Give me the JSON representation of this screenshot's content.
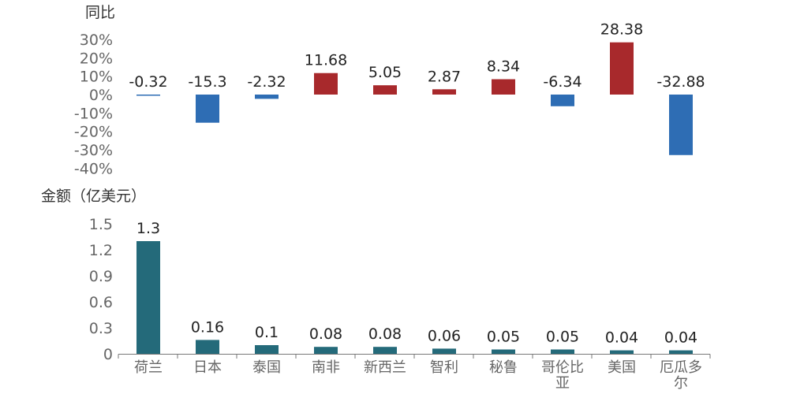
{
  "colors": {
    "positive": "#A8292C",
    "negative": "#2E6DB4",
    "amount": "#246A7A",
    "axis": "#777777",
    "tick_text": "#666666",
    "label_text": "#222222"
  },
  "chart_data": [
    {
      "type": "bar",
      "ylabel": "同比",
      "categories": [
        "荷兰",
        "日本",
        "泰国",
        "南非",
        "新西兰",
        "智利",
        "秘鲁",
        "哥伦比亚",
        "美国",
        "厄瓜多尔"
      ],
      "values": [
        -0.32,
        -15.3,
        -2.32,
        11.68,
        5.05,
        2.87,
        8.34,
        -6.34,
        28.38,
        -32.88
      ],
      "data_labels": [
        "-0.32",
        "-15.3",
        "-2.32",
        "11.68",
        "5.05",
        "2.87",
        "8.34",
        "-6.34",
        "28.38",
        "-32.88"
      ],
      "unit": "%",
      "ylim": [
        -40,
        30
      ],
      "yticks": [
        30,
        20,
        10,
        0,
        -10,
        -20,
        -30,
        -40
      ],
      "ytick_labels": [
        "30%",
        "20%",
        "10%",
        "0%",
        "-10%",
        "-20%",
        "-30%",
        "-40%"
      ],
      "grid": false,
      "legend": "none"
    },
    {
      "type": "bar",
      "ylabel": "金额（亿美元）",
      "categories": [
        "荷兰",
        "日本",
        "泰国",
        "南非",
        "新西兰",
        "智利",
        "秘鲁",
        "哥伦比亚",
        "美国",
        "厄瓜多尔"
      ],
      "category_display": [
        [
          "荷兰"
        ],
        [
          "日本"
        ],
        [
          "泰国"
        ],
        [
          "南非"
        ],
        [
          "新西兰"
        ],
        [
          "智利"
        ],
        [
          "秘鲁"
        ],
        [
          "哥伦比",
          "亚"
        ],
        [
          "美国"
        ],
        [
          "厄瓜多",
          "尔"
        ]
      ],
      "values": [
        1.3,
        0.16,
        0.1,
        0.08,
        0.08,
        0.06,
        0.05,
        0.05,
        0.04,
        0.04
      ],
      "data_labels": [
        "1.3",
        "0.16",
        "0.1",
        "0.08",
        "0.08",
        "0.06",
        "0.05",
        "0.05",
        "0.04",
        "0.04"
      ],
      "ylim": [
        0,
        1.5
      ],
      "yticks": [
        0,
        0.3,
        0.6,
        0.9,
        1.2,
        1.5
      ],
      "ytick_labels": [
        "0",
        "0.3",
        "0.6",
        "0.9",
        "1.2",
        "1.5"
      ],
      "grid": false,
      "legend": "none"
    }
  ]
}
